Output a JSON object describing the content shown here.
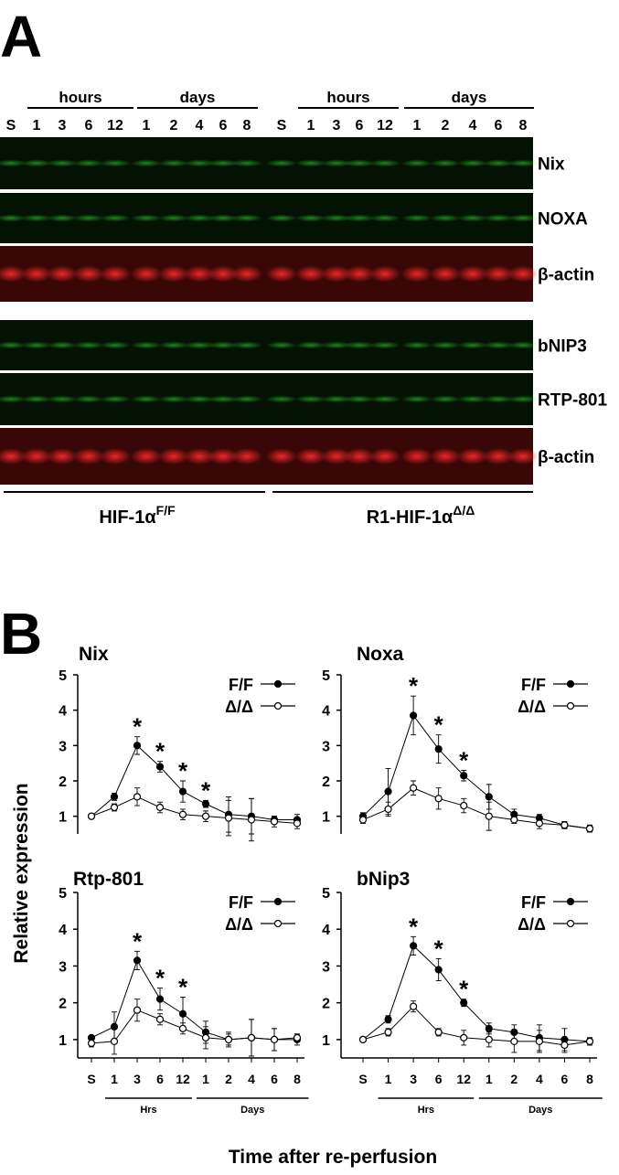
{
  "panel_a": {
    "label": "A",
    "lane_groups": [
      "hours",
      "days",
      "hours",
      "days"
    ],
    "lanes": [
      "S",
      "1",
      "3",
      "6",
      "12",
      "1",
      "2",
      "4",
      "6",
      "8",
      "S",
      "1",
      "3",
      "6",
      "12",
      "1",
      "2",
      "4",
      "6",
      "8"
    ],
    "blots": [
      "Nix",
      "NOXA",
      "β-actin",
      "bNIP3",
      "RTP-801",
      "β-actin"
    ],
    "genotypes": [
      {
        "text": "HIF-1α",
        "sup": "F/F"
      },
      {
        "text": "R1-HIF-1α",
        "sup": "Δ/Δ"
      }
    ]
  },
  "panel_b": {
    "label": "B",
    "y_label": "Relative expression",
    "x_label": "Time after re-perfusion"
  },
  "chart_data": [
    {
      "type": "line",
      "title": "Nix",
      "categories": [
        null,
        null,
        null,
        null,
        null,
        null,
        null,
        null,
        null,
        null
      ],
      "ylim": [
        0.5,
        5
      ],
      "yticks": [
        1,
        2,
        3,
        4,
        5
      ],
      "series": [
        {
          "name": "F/F",
          "color": "#000000",
          "marker": "filled",
          "values": [
            1,
            1.55,
            3.0,
            2.4,
            1.7,
            1.35,
            1.05,
            1.0,
            0.9,
            0.9
          ],
          "errors": [
            0.05,
            0.1,
            0.25,
            0.15,
            0.3,
            0.1,
            0.5,
            0.5,
            0.1,
            0.15
          ]
        },
        {
          "name": "Δ/Δ",
          "color": "#000000",
          "marker": "open",
          "values": [
            1,
            1.25,
            1.55,
            1.25,
            1.05,
            1.0,
            0.95,
            0.9,
            0.85,
            0.8
          ],
          "errors": [
            0.05,
            0.1,
            0.25,
            0.15,
            0.15,
            0.15,
            0.5,
            0.6,
            0.15,
            0.15
          ]
        }
      ],
      "annotations": [
        {
          "text": "*",
          "category_index": 2
        },
        {
          "text": "*",
          "category_index": 3
        },
        {
          "text": "*",
          "category_index": 4
        },
        {
          "text": "*",
          "category_index": 5
        }
      ]
    },
    {
      "type": "line",
      "title": "Noxa",
      "categories": [
        null,
        null,
        null,
        null,
        null,
        null,
        null,
        null,
        null,
        null
      ],
      "ylim": [
        0.5,
        5
      ],
      "yticks": [
        1,
        2,
        3,
        4,
        5
      ],
      "series": [
        {
          "name": "F/F",
          "color": "#000000",
          "marker": "filled",
          "values": [
            1,
            1.7,
            3.85,
            2.9,
            2.15,
            1.55,
            1.05,
            0.95,
            0.75,
            0.65
          ],
          "errors": [
            0.1,
            0.65,
            0.55,
            0.4,
            0.15,
            0.35,
            0.15,
            0.1,
            0.1,
            0.1
          ]
        },
        {
          "name": "Δ/Δ",
          "color": "#000000",
          "marker": "open",
          "values": [
            0.9,
            1.2,
            1.8,
            1.5,
            1.3,
            1.0,
            0.9,
            0.8,
            0.75,
            0.65
          ],
          "errors": [
            0.1,
            0.2,
            0.2,
            0.3,
            0.2,
            0.4,
            0.1,
            0.15,
            0.1,
            0.1
          ]
        }
      ],
      "annotations": [
        {
          "text": "*",
          "category_index": 2
        },
        {
          "text": "*",
          "category_index": 3
        },
        {
          "text": "*",
          "category_index": 4
        }
      ]
    },
    {
      "type": "line",
      "title": "Rtp-801",
      "categories": [
        "S",
        "1",
        "3",
        "6",
        "12",
        "1",
        "2",
        "4",
        "6",
        "8"
      ],
      "group_labels": [
        "Hrs",
        "Days"
      ],
      "ylim": [
        0.5,
        5
      ],
      "yticks": [
        1,
        2,
        3,
        4,
        5
      ],
      "series": [
        {
          "name": "F/F",
          "color": "#000000",
          "marker": "filled",
          "values": [
            1.05,
            1.35,
            3.15,
            2.1,
            1.7,
            1.2,
            1.0,
            1.05,
            1.0,
            1.0
          ],
          "errors": [
            0.05,
            0.4,
            0.25,
            0.3,
            0.45,
            0.3,
            0.2,
            0.5,
            0.3,
            0.15
          ]
        },
        {
          "name": "Δ/Δ",
          "color": "#000000",
          "marker": "open",
          "values": [
            0.9,
            0.95,
            1.8,
            1.55,
            1.3,
            1.05,
            1.0,
            1.05,
            1.0,
            1.05
          ],
          "errors": [
            0.1,
            0.35,
            0.3,
            0.15,
            0.15,
            0.3,
            0.15,
            0.5,
            0.3,
            0.1
          ]
        }
      ],
      "annotations": [
        {
          "text": "*",
          "category_index": 2
        },
        {
          "text": "*",
          "category_index": 3
        },
        {
          "text": "*",
          "category_index": 4
        }
      ]
    },
    {
      "type": "line",
      "title": "bNip3",
      "categories": [
        "S",
        "1",
        "3",
        "6",
        "12",
        "1",
        "2",
        "4",
        "6",
        "8"
      ],
      "group_labels": [
        "Hrs",
        "Days"
      ],
      "ylim": [
        0.5,
        5
      ],
      "yticks": [
        1,
        2,
        3,
        4,
        5
      ],
      "series": [
        {
          "name": "F/F",
          "color": "#000000",
          "marker": "filled",
          "values": [
            1,
            1.55,
            3.55,
            2.9,
            2.0,
            1.3,
            1.2,
            1.05,
            1.0,
            0.95
          ],
          "errors": [
            0.05,
            0.1,
            0.25,
            0.3,
            0.1,
            0.15,
            0.2,
            0.35,
            0.3,
            0.1
          ]
        },
        {
          "name": "Δ/Δ",
          "color": "#000000",
          "marker": "open",
          "values": [
            1,
            1.2,
            1.9,
            1.2,
            1.05,
            1.0,
            0.95,
            0.95,
            0.85,
            0.95
          ],
          "errors": [
            0.05,
            0.1,
            0.15,
            0.1,
            0.2,
            0.2,
            0.3,
            0.3,
            0.2,
            0.1
          ]
        }
      ],
      "annotations": [
        {
          "text": "*",
          "category_index": 2
        },
        {
          "text": "*",
          "category_index": 3
        },
        {
          "text": "*",
          "category_index": 4
        }
      ]
    }
  ]
}
